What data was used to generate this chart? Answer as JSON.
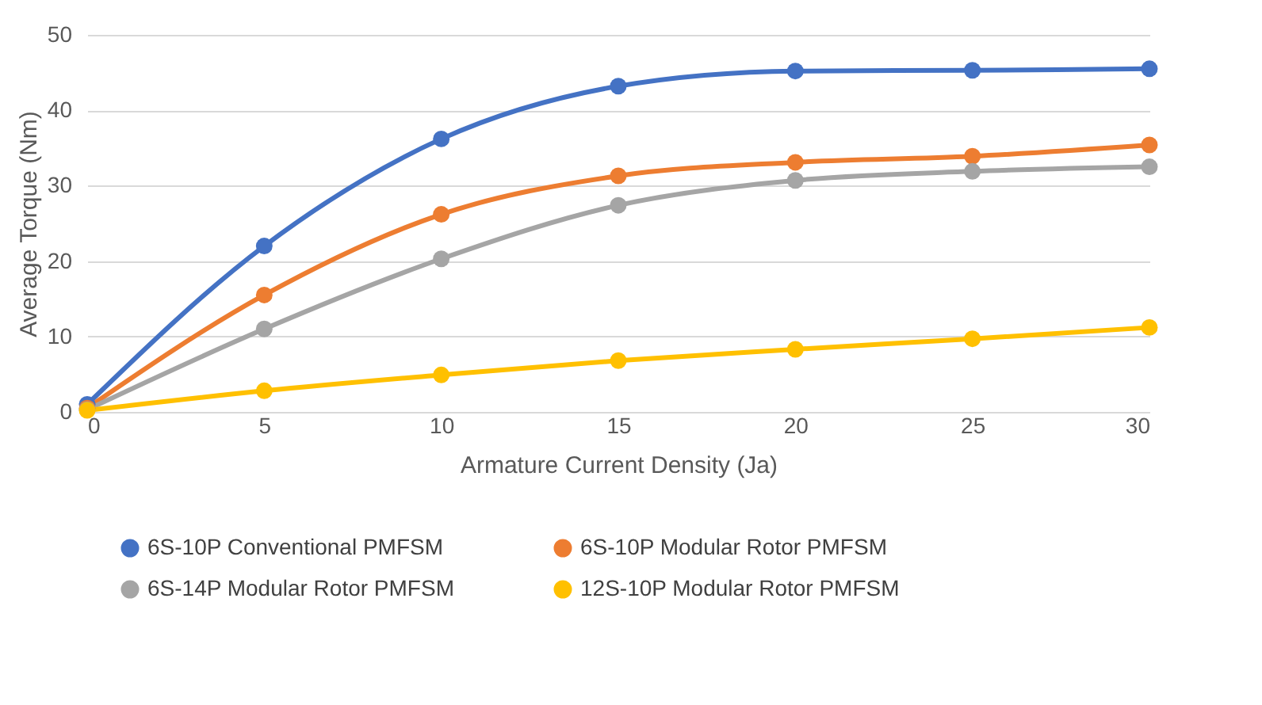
{
  "chart_data": {
    "type": "line",
    "xlabel": "Armature Current Density (Ja)",
    "ylabel": "Average Torque (Nm)",
    "x": [
      0,
      5,
      10,
      15,
      20,
      25,
      30
    ],
    "series": [
      {
        "name": "6S-10P Conventional PMFSM",
        "color": "#4472c4",
        "values": [
          1.0,
          22.0,
          36.2,
          43.2,
          45.2,
          45.3,
          45.5
        ]
      },
      {
        "name": "6S-10P Modular Rotor PMFSM",
        "color": "#ed7d31",
        "values": [
          0.5,
          15.5,
          26.2,
          31.3,
          33.1,
          33.9,
          35.4
        ]
      },
      {
        "name": "6S-14P Modular Rotor PMFSM",
        "color": "#a5a5a5",
        "values": [
          0.3,
          11.0,
          20.3,
          27.4,
          30.7,
          31.9,
          32.5
        ]
      },
      {
        "name": "12S-10P Modular Rotor PMFSM",
        "color": "#ffc000",
        "values": [
          0.2,
          2.8,
          4.9,
          6.8,
          8.3,
          9.7,
          11.2
        ]
      }
    ],
    "xlim": [
      0,
      30
    ],
    "xticks": [
      0,
      5,
      10,
      15,
      20,
      25,
      30
    ],
    "ylim": [
      0,
      50
    ],
    "yticks": [
      0,
      10,
      20,
      30,
      40,
      50
    ],
    "grid": "y",
    "legend": "bottom",
    "marker": "circle",
    "line_style": "solid"
  }
}
